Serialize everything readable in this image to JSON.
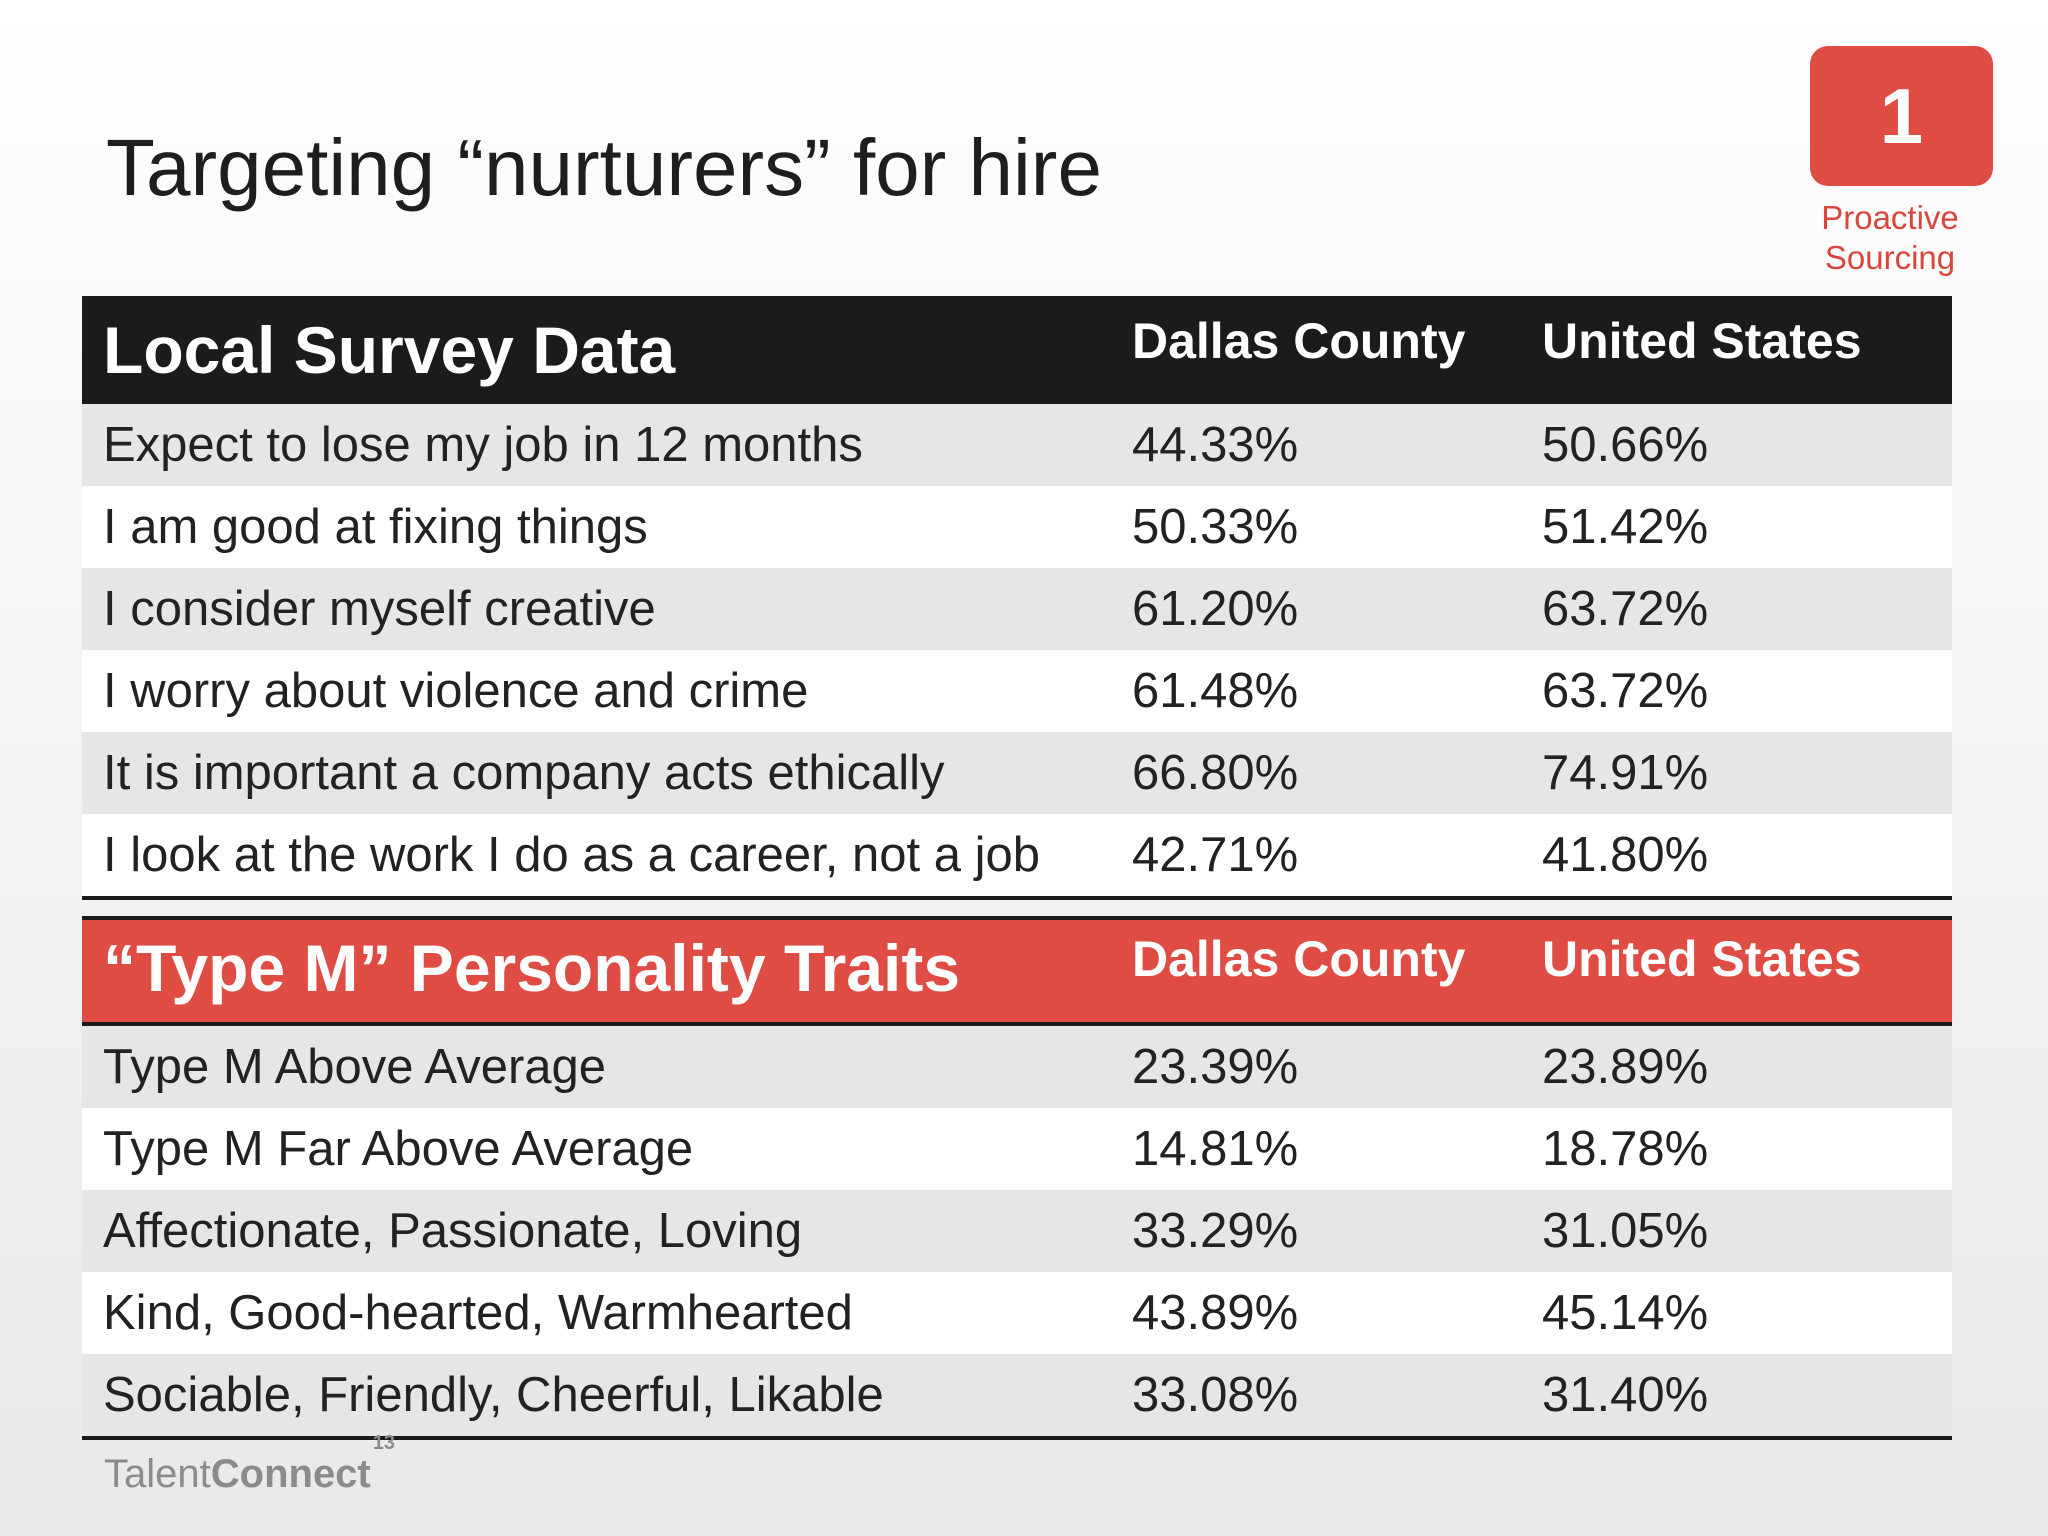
{
  "slide": {
    "title": "Targeting “nurturers” for hire",
    "badge": {
      "number": "1",
      "caption_line1": "Proactive",
      "caption_line2": "Sourcing",
      "color": "#df4c43"
    },
    "logo": {
      "word1": "Talent",
      "word2": "Connect",
      "superscript": "13"
    }
  },
  "survey_table": {
    "title": "Local Survey Data",
    "col_a": "Dallas County",
    "col_b": "United States",
    "header_color": "#1b1b1b",
    "rows": [
      {
        "label": "Expect to lose my job in 12 months",
        "a": "44.33%",
        "b": "50.66%"
      },
      {
        "label": "I am good at fixing things",
        "a": "50.33%",
        "b": "51.42%"
      },
      {
        "label": "I consider myself creative",
        "a": "61.20%",
        "b": "63.72%"
      },
      {
        "label": "I worry about violence and crime",
        "a": "61.48%",
        "b": "63.72%"
      },
      {
        "label": "It is important a company acts ethically",
        "a": "66.80%",
        "b": "74.91%"
      },
      {
        "label": "I look at the work I do as a career, not a job",
        "a": "42.71%",
        "b": "41.80%"
      }
    ]
  },
  "traits_table": {
    "title": "“Type M” Personality Traits",
    "col_a": "Dallas County",
    "col_b": "United States",
    "header_color": "#df4c43",
    "rows": [
      {
        "label": "Type M Above Average",
        "a": "23.39%",
        "b": "23.89%"
      },
      {
        "label": "Type M Far Above Average",
        "a": "14.81%",
        "b": "18.78%"
      },
      {
        "label": "Affectionate, Passionate, Loving",
        "a": "33.29%",
        "b": "31.05%"
      },
      {
        "label": "Kind, Good-hearted, Warmhearted",
        "a": "43.89%",
        "b": "45.14%"
      },
      {
        "label": "Sociable, Friendly, Cheerful, Likable",
        "a": "33.08%",
        "b": "31.40%"
      }
    ]
  }
}
